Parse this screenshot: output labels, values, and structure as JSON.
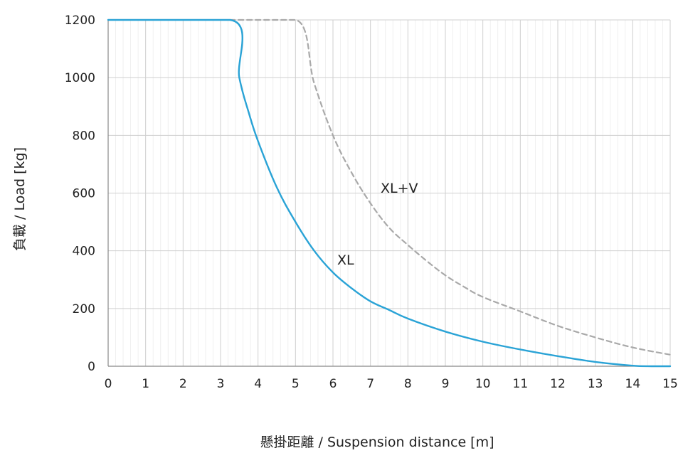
{
  "chart_data": {
    "type": "line",
    "xlabel": "懸掛距離 / Suspension distance [m]",
    "ylabel": "負載 / Load [kg]",
    "xlim": [
      0,
      15
    ],
    "ylim": [
      0,
      1200
    ],
    "x_ticks": [
      0,
      1,
      2,
      3,
      4,
      5,
      6,
      7,
      8,
      9,
      10,
      11,
      12,
      13,
      14,
      15
    ],
    "y_ticks": [
      0,
      200,
      400,
      600,
      800,
      1000,
      1200
    ],
    "grid": true,
    "series": [
      {
        "name": "XL",
        "color": "#2aa3d6",
        "style": "solid",
        "x": [
          0,
          3.25,
          3.5,
          3.75,
          4,
          4.5,
          5,
          5.5,
          6,
          6.5,
          7,
          7.5,
          8,
          9,
          10,
          11,
          12,
          13,
          14,
          14.5,
          15
        ],
        "y": [
          1200,
          1200,
          1000,
          880,
          780,
          620,
          500,
          400,
          325,
          270,
          225,
          195,
          165,
          120,
          85,
          58,
          35,
          15,
          2,
          0,
          0
        ]
      },
      {
        "name": "XL+V",
        "color": "#a9a9a9",
        "style": "dashed",
        "x": [
          3.25,
          5,
          5.5,
          6,
          6.5,
          7,
          7.5,
          8,
          8.5,
          9,
          9.5,
          10,
          11,
          12,
          13,
          14,
          15
        ],
        "y": [
          1200,
          1200,
          980,
          800,
          670,
          565,
          480,
          420,
          365,
          315,
          275,
          240,
          190,
          140,
          100,
          65,
          40
        ]
      }
    ]
  }
}
